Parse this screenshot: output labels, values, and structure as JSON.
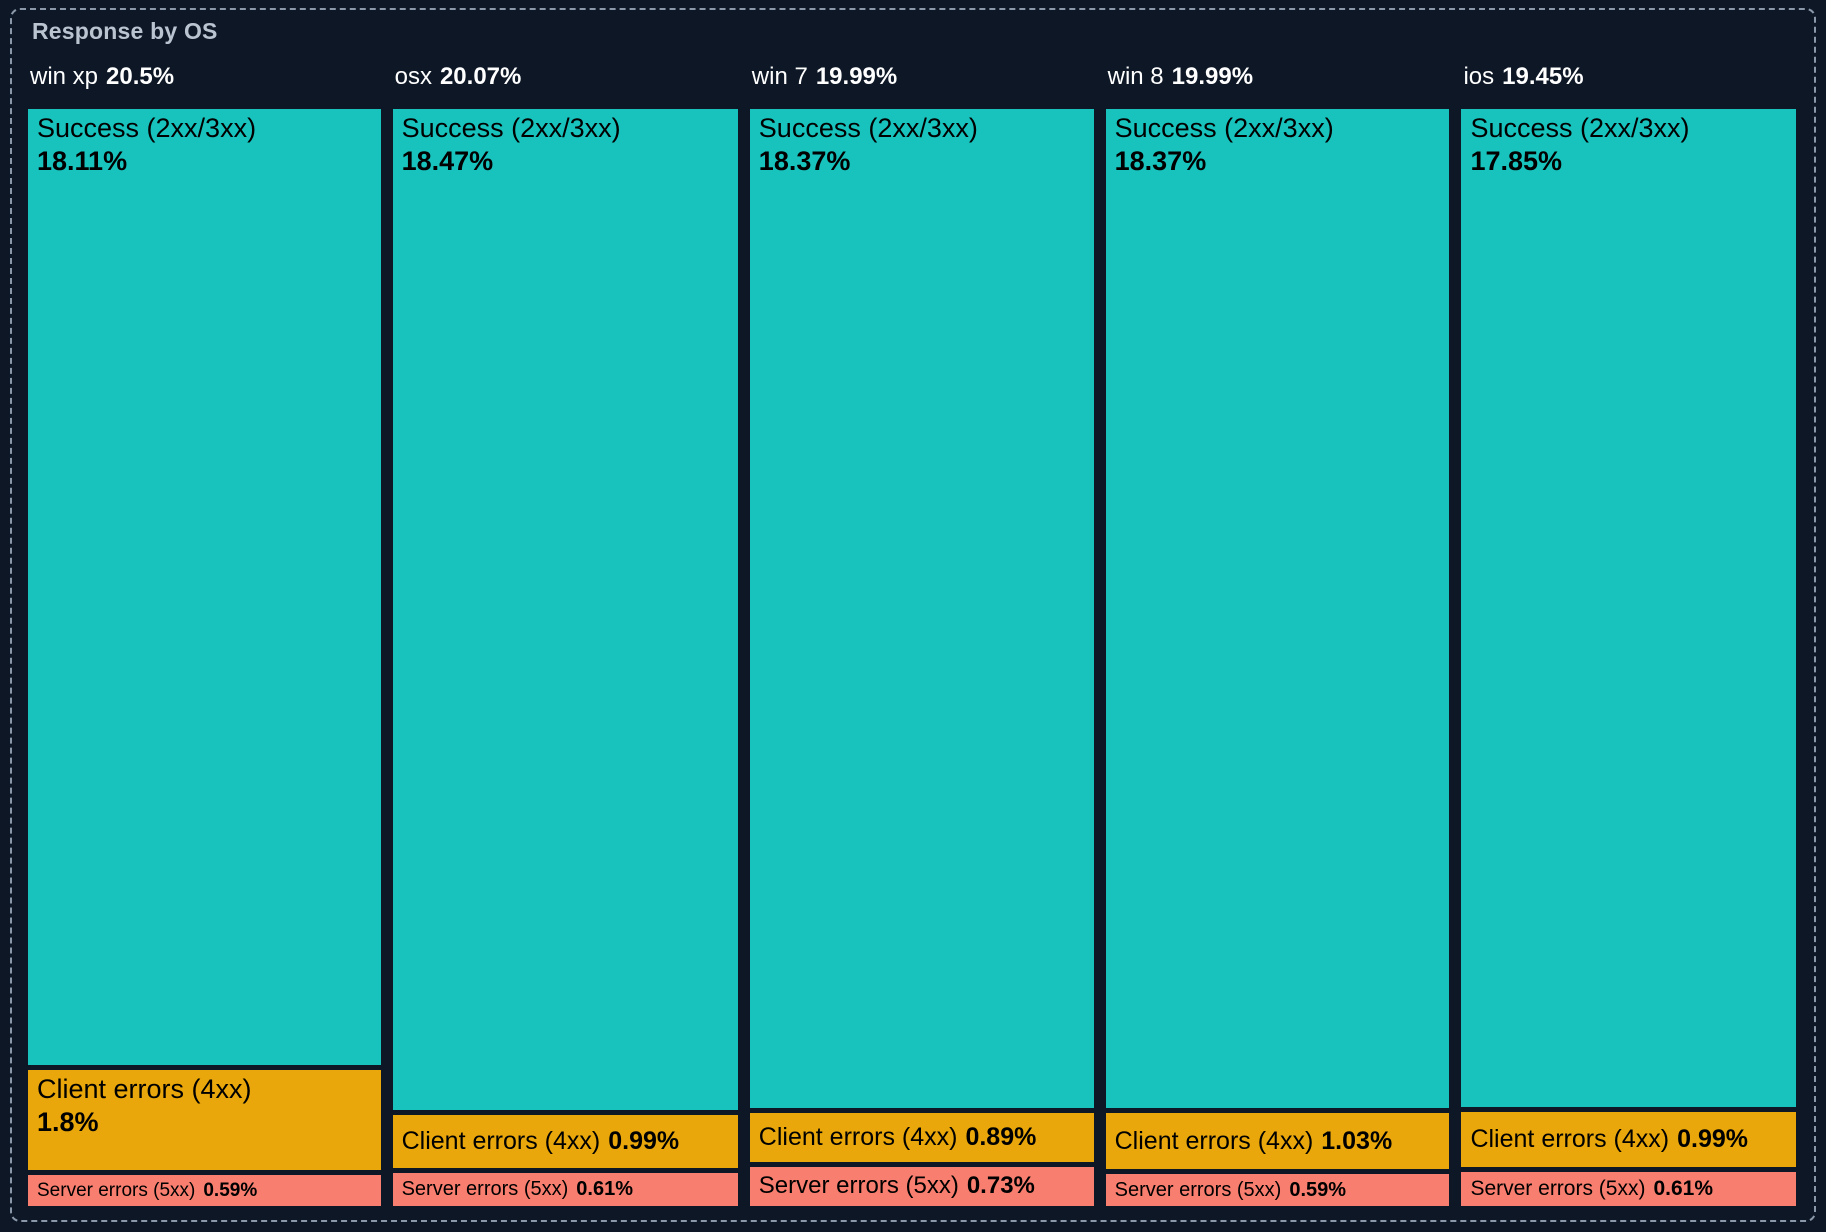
{
  "panel": {
    "title": "Response by OS"
  },
  "colors": {
    "background": "#0d1726",
    "panel_border": "#8b98aa",
    "title_text": "#bac4d1",
    "header_text": "#ffffff",
    "segment_text": "#000000",
    "success": "#18c3bd",
    "client_errors": "#e9a70b",
    "server_errors": "#f87f70"
  },
  "chart_data": {
    "type": "treemap",
    "title": "Response by OS",
    "layout": "vertical-columns-per-os",
    "legend_position": "none",
    "units": "percent of total responses",
    "columns": [
      {
        "name": "win xp",
        "total_label": "20.5%",
        "total": 20.5,
        "segments": [
          {
            "name": "Success (2xx/3xx)",
            "label": "18.11%",
            "value": 18.11,
            "category": "success"
          },
          {
            "name": "Client errors (4xx)",
            "label": "1.8%",
            "value": 1.8,
            "category": "client_errors"
          },
          {
            "name": "Server errors (5xx)",
            "label": "0.59%",
            "value": 0.59,
            "category": "server_errors"
          }
        ]
      },
      {
        "name": "osx",
        "total_label": "20.07%",
        "total": 20.07,
        "segments": [
          {
            "name": "Success (2xx/3xx)",
            "label": "18.47%",
            "value": 18.47,
            "category": "success"
          },
          {
            "name": "Client errors (4xx)",
            "label": "0.99%",
            "value": 0.99,
            "category": "client_errors"
          },
          {
            "name": "Server errors (5xx)",
            "label": "0.61%",
            "value": 0.61,
            "category": "server_errors"
          }
        ]
      },
      {
        "name": "win 7",
        "total_label": "19.99%",
        "total": 19.99,
        "segments": [
          {
            "name": "Success (2xx/3xx)",
            "label": "18.37%",
            "value": 18.37,
            "category": "success"
          },
          {
            "name": "Client errors (4xx)",
            "label": "0.89%",
            "value": 0.89,
            "category": "client_errors"
          },
          {
            "name": "Server errors (5xx)",
            "label": "0.73%",
            "value": 0.73,
            "category": "server_errors"
          }
        ]
      },
      {
        "name": "win 8",
        "total_label": "19.99%",
        "total": 19.99,
        "segments": [
          {
            "name": "Success (2xx/3xx)",
            "label": "18.37%",
            "value": 18.37,
            "category": "success"
          },
          {
            "name": "Client errors (4xx)",
            "label": "1.03%",
            "value": 1.03,
            "category": "client_errors"
          },
          {
            "name": "Server errors (5xx)",
            "label": "0.59%",
            "value": 0.59,
            "category": "server_errors"
          }
        ]
      },
      {
        "name": "ios",
        "total_label": "19.45%",
        "total": 19.45,
        "segments": [
          {
            "name": "Success (2xx/3xx)",
            "label": "17.85%",
            "value": 17.85,
            "category": "success"
          },
          {
            "name": "Client errors (4xx)",
            "label": "0.99%",
            "value": 0.99,
            "category": "client_errors"
          },
          {
            "name": "Server errors (5xx)",
            "label": "0.61%",
            "value": 0.61,
            "category": "server_errors"
          }
        ]
      }
    ]
  }
}
